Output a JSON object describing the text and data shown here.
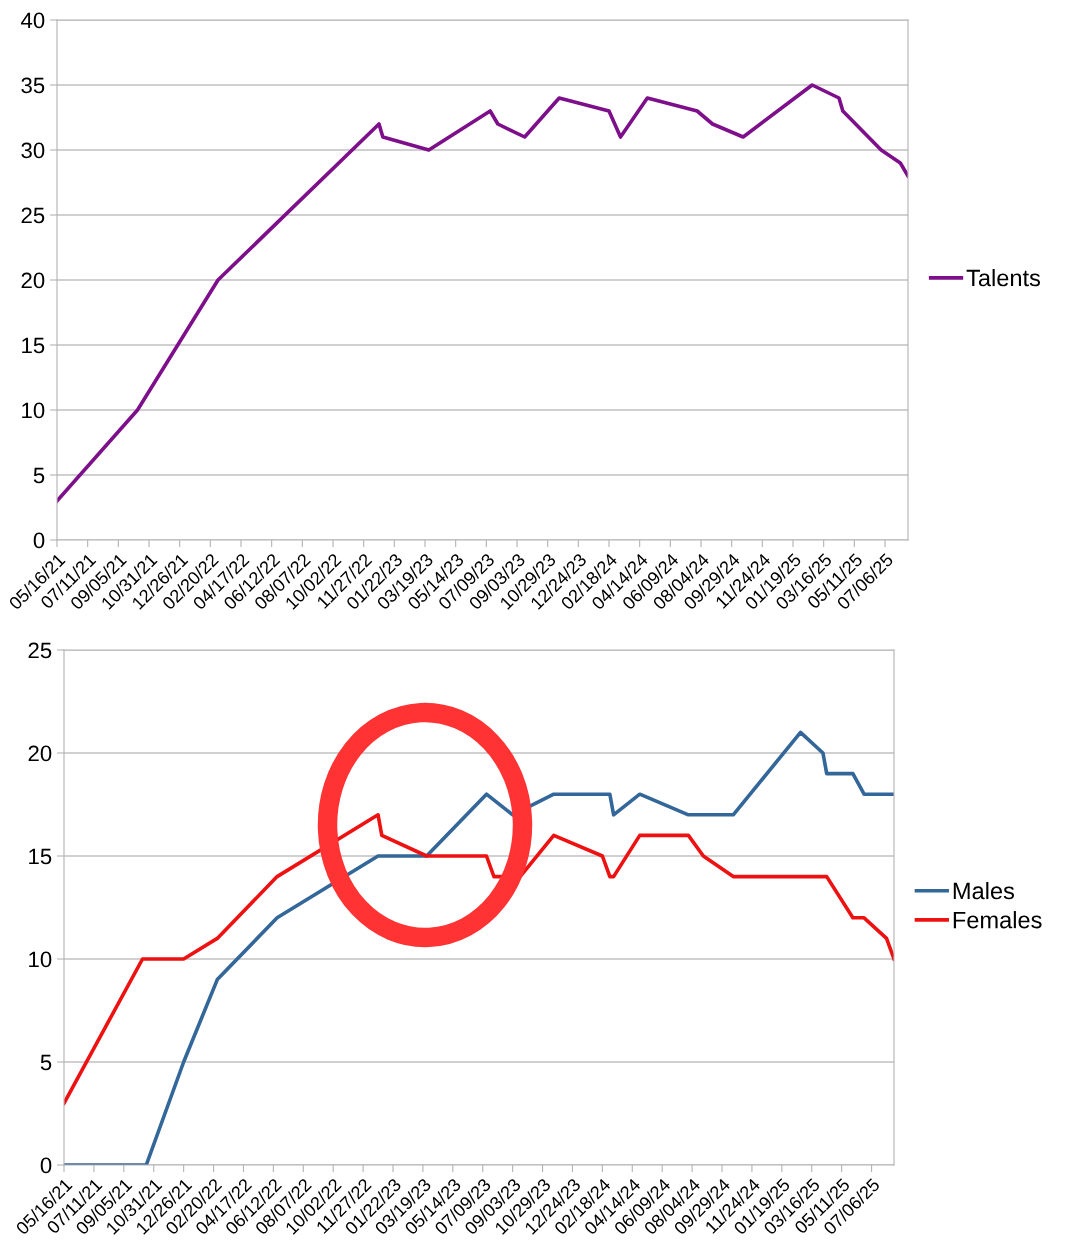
{
  "chart_data": [
    {
      "type": "line",
      "series": [
        {
          "name": "Talents",
          "color": "#7e0f8a",
          "x": [
            "2021-05-16",
            "2021-10-10",
            "2022-03-06",
            "2022-12-25",
            "2023-01-01",
            "2023-03-26",
            "2023-07-16",
            "2023-07-30",
            "2023-09-17",
            "2023-11-19",
            "2024-02-18",
            "2024-03-10",
            "2024-04-28",
            "2024-07-28",
            "2024-08-25",
            "2024-10-20",
            "2025-02-23",
            "2025-04-13",
            "2025-04-20",
            "2025-06-29",
            "2025-08-03",
            "2025-08-17"
          ],
          "values": [
            3,
            10,
            20,
            32,
            31,
            30,
            33,
            32,
            31,
            34,
            33,
            31,
            34,
            33,
            32,
            31,
            35,
            34,
            33,
            30,
            29,
            28
          ]
        }
      ],
      "xlim": [
        "2021-05-16",
        "2025-08-17"
      ],
      "xticks": [
        {
          "value": "2021-05-16",
          "label": "05/16/21"
        },
        {
          "value": "2021-07-11",
          "label": "07/11/21"
        },
        {
          "value": "2021-09-05",
          "label": "09/05/21"
        },
        {
          "value": "2021-10-31",
          "label": "10/31/21"
        },
        {
          "value": "2021-12-26",
          "label": "12/26/21"
        },
        {
          "value": "2022-02-20",
          "label": "02/20/22"
        },
        {
          "value": "2022-04-17",
          "label": "04/17/22"
        },
        {
          "value": "2022-06-12",
          "label": "06/12/22"
        },
        {
          "value": "2022-08-07",
          "label": "08/07/22"
        },
        {
          "value": "2022-10-02",
          "label": "10/02/22"
        },
        {
          "value": "2022-11-27",
          "label": "11/27/22"
        },
        {
          "value": "2023-01-22",
          "label": "01/22/23"
        },
        {
          "value": "2023-03-19",
          "label": "03/19/23"
        },
        {
          "value": "2023-05-14",
          "label": "05/14/23"
        },
        {
          "value": "2023-07-09",
          "label": "07/09/23"
        },
        {
          "value": "2023-09-03",
          "label": "09/03/23"
        },
        {
          "value": "2023-10-29",
          "label": "10/29/23"
        },
        {
          "value": "2023-12-24",
          "label": "12/24/23"
        },
        {
          "value": "2024-02-18",
          "label": "02/18/24"
        },
        {
          "value": "2024-04-14",
          "label": "04/14/24"
        },
        {
          "value": "2024-06-09",
          "label": "06/09/24"
        },
        {
          "value": "2024-08-04",
          "label": "08/04/24"
        },
        {
          "value": "2024-09-29",
          "label": "09/29/24"
        },
        {
          "value": "2024-11-24",
          "label": "11/24/24"
        },
        {
          "value": "2025-01-19",
          "label": "01/19/25"
        },
        {
          "value": "2025-03-16",
          "label": "03/16/25"
        },
        {
          "value": "2025-05-11",
          "label": "05/11/25"
        },
        {
          "value": "2025-07-06",
          "label": "07/06/25"
        }
      ],
      "ylim": [
        0,
        40
      ],
      "yticks": [
        0,
        5,
        10,
        15,
        20,
        25,
        30,
        35,
        40
      ],
      "grid": "y",
      "legend": "right",
      "marker": "none",
      "line_style": "solid"
    },
    {
      "type": "line",
      "series": [
        {
          "name": "Males",
          "color": "#336699",
          "x": [
            "2021-05-16",
            "2021-10-17",
            "2021-12-26",
            "2022-02-27",
            "2022-06-19",
            "2022-12-25",
            "2023-03-26",
            "2023-07-16",
            "2023-09-03",
            "2023-11-19",
            "2024-03-03",
            "2024-03-10",
            "2024-04-28",
            "2024-07-28",
            "2024-10-20",
            "2025-02-23",
            "2025-04-06",
            "2025-04-13",
            "2025-06-01",
            "2025-06-22",
            "2025-08-17"
          ],
          "values": [
            0,
            0,
            5,
            9,
            12,
            15,
            15,
            18,
            17,
            18,
            18,
            17,
            18,
            17,
            17,
            21,
            20,
            19,
            19,
            18,
            18
          ]
        },
        {
          "name": "Females",
          "color": "#ee1111",
          "x": [
            "2021-05-16",
            "2021-10-10",
            "2021-12-26",
            "2022-02-27",
            "2022-06-19",
            "2022-12-25",
            "2023-01-01",
            "2023-03-26",
            "2023-07-16",
            "2023-07-30",
            "2023-09-17",
            "2023-11-19",
            "2024-02-18",
            "2024-03-03",
            "2024-03-10",
            "2024-04-28",
            "2024-07-28",
            "2024-08-25",
            "2024-10-20",
            "2025-04-13",
            "2025-06-01",
            "2025-06-22",
            "2025-08-03",
            "2025-08-17"
          ],
          "values": [
            3,
            10,
            10,
            11,
            14,
            17,
            16,
            15,
            15,
            14,
            14,
            16,
            15,
            14,
            14,
            16,
            16,
            15,
            14,
            14,
            12,
            12,
            11,
            10
          ]
        }
      ],
      "xlim": [
        "2021-05-16",
        "2025-08-17"
      ],
      "xticks": [
        {
          "value": "2021-05-16",
          "label": "05/16/21"
        },
        {
          "value": "2021-07-11",
          "label": "07/11/21"
        },
        {
          "value": "2021-09-05",
          "label": "09/05/21"
        },
        {
          "value": "2021-10-31",
          "label": "10/31/21"
        },
        {
          "value": "2021-12-26",
          "label": "12/26/21"
        },
        {
          "value": "2022-02-20",
          "label": "02/20/22"
        },
        {
          "value": "2022-04-17",
          "label": "04/17/22"
        },
        {
          "value": "2022-06-12",
          "label": "06/12/22"
        },
        {
          "value": "2022-08-07",
          "label": "08/07/22"
        },
        {
          "value": "2022-10-02",
          "label": "10/02/22"
        },
        {
          "value": "2022-11-27",
          "label": "11/27/22"
        },
        {
          "value": "2023-01-22",
          "label": "01/22/23"
        },
        {
          "value": "2023-03-19",
          "label": "03/19/23"
        },
        {
          "value": "2023-05-14",
          "label": "05/14/23"
        },
        {
          "value": "2023-07-09",
          "label": "07/09/23"
        },
        {
          "value": "2023-09-03",
          "label": "09/03/23"
        },
        {
          "value": "2023-10-29",
          "label": "10/29/23"
        },
        {
          "value": "2023-12-24",
          "label": "12/24/23"
        },
        {
          "value": "2024-02-18",
          "label": "02/18/24"
        },
        {
          "value": "2024-04-14",
          "label": "04/14/24"
        },
        {
          "value": "2024-06-09",
          "label": "06/09/24"
        },
        {
          "value": "2024-08-04",
          "label": "08/04/24"
        },
        {
          "value": "2024-09-29",
          "label": "09/29/24"
        },
        {
          "value": "2024-11-24",
          "label": "11/24/24"
        },
        {
          "value": "2025-01-19",
          "label": "01/19/25"
        },
        {
          "value": "2025-03-16",
          "label": "03/16/25"
        },
        {
          "value": "2025-05-11",
          "label": "05/11/25"
        },
        {
          "value": "2025-07-06",
          "label": "07/06/25"
        }
      ],
      "ylim": [
        0,
        25
      ],
      "yticks": [
        0,
        5,
        10,
        15,
        20,
        25
      ],
      "grid": "y",
      "legend": "right",
      "marker": "none",
      "line_style": "solid"
    }
  ]
}
